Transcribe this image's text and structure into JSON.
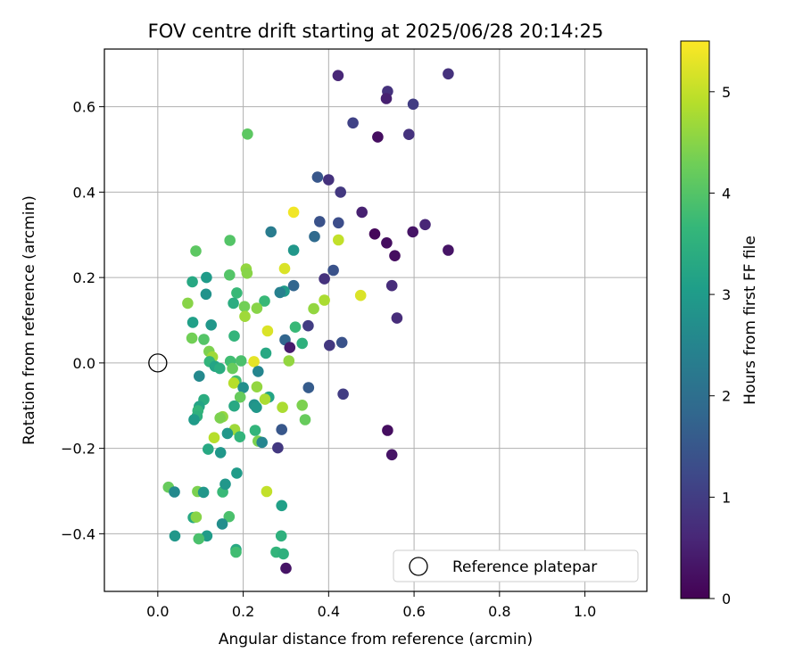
{
  "chart_data": {
    "type": "scatter",
    "title": "FOV centre drift starting at 2025/06/28 20:14:25",
    "xlabel": "Angular distance from reference (arcmin)",
    "ylabel": "Rotation from reference (arcmin)",
    "xlim": [
      -0.125,
      1.145
    ],
    "ylim": [
      -0.535,
      0.735
    ],
    "xticks": [
      0.0,
      0.2,
      0.4,
      0.6,
      0.8,
      1.0
    ],
    "yticks": [
      -0.4,
      -0.2,
      0.0,
      0.2,
      0.4,
      0.6
    ],
    "xtick_labels": [
      "0.0",
      "0.2",
      "0.4",
      "0.6",
      "0.8",
      "1.0"
    ],
    "ytick_labels": [
      "−0.4",
      "−0.2",
      "0.0",
      "0.2",
      "0.4",
      "0.6"
    ],
    "grid": true,
    "colormap": "viridis",
    "color_scale": {
      "label": "Hours from first FF file",
      "range": [
        0,
        5.5
      ],
      "ticks": [
        0,
        1,
        2,
        3,
        4,
        5
      ],
      "tick_labels": [
        "0",
        "1",
        "2",
        "3",
        "4",
        "5"
      ],
      "stops": [
        "#440154",
        "#482878",
        "#3e4989",
        "#31688e",
        "#26828e",
        "#1f9e89",
        "#35b779",
        "#6ece58",
        "#b5de2b",
        "#fde725"
      ]
    },
    "reference": {
      "x": 0.0,
      "y": 0.0,
      "label": "Reference platepar",
      "marker": "hollow-circle"
    },
    "legend_position": "lower-right",
    "points": [
      {
        "x": 0.422,
        "y": 0.673,
        "h": 0.6
      },
      {
        "x": 0.538,
        "y": 0.636,
        "h": 0.8
      },
      {
        "x": 0.68,
        "y": 0.677,
        "h": 0.8
      },
      {
        "x": 0.535,
        "y": 0.619,
        "h": 0.5
      },
      {
        "x": 0.598,
        "y": 0.606,
        "h": 1.0
      },
      {
        "x": 0.457,
        "y": 0.562,
        "h": 1.1
      },
      {
        "x": 0.515,
        "y": 0.529,
        "h": 0.2
      },
      {
        "x": 0.588,
        "y": 0.535,
        "h": 0.8
      },
      {
        "x": 0.21,
        "y": 0.536,
        "h": 4.1
      },
      {
        "x": 0.374,
        "y": 0.435,
        "h": 1.5
      },
      {
        "x": 0.4,
        "y": 0.429,
        "h": 0.8
      },
      {
        "x": 0.428,
        "y": 0.4,
        "h": 0.9
      },
      {
        "x": 0.478,
        "y": 0.353,
        "h": 0.5
      },
      {
        "x": 0.318,
        "y": 0.353,
        "h": 5.4
      },
      {
        "x": 0.379,
        "y": 0.331,
        "h": 1.4
      },
      {
        "x": 0.423,
        "y": 0.328,
        "h": 1.3
      },
      {
        "x": 0.626,
        "y": 0.324,
        "h": 0.6
      },
      {
        "x": 0.265,
        "y": 0.307,
        "h": 2.3
      },
      {
        "x": 0.597,
        "y": 0.307,
        "h": 0.3
      },
      {
        "x": 0.508,
        "y": 0.302,
        "h": 0.1
      },
      {
        "x": 0.367,
        "y": 0.296,
        "h": 1.9
      },
      {
        "x": 0.423,
        "y": 0.288,
        "h": 5.0
      },
      {
        "x": 0.169,
        "y": 0.287,
        "h": 4.0
      },
      {
        "x": 0.536,
        "y": 0.281,
        "h": 0.2
      },
      {
        "x": 0.318,
        "y": 0.264,
        "h": 2.9
      },
      {
        "x": 0.68,
        "y": 0.264,
        "h": 0.3
      },
      {
        "x": 0.089,
        "y": 0.262,
        "h": 4.1
      },
      {
        "x": 0.555,
        "y": 0.251,
        "h": 0.2
      },
      {
        "x": 0.207,
        "y": 0.22,
        "h": 4.6
      },
      {
        "x": 0.297,
        "y": 0.221,
        "h": 5.2
      },
      {
        "x": 0.411,
        "y": 0.217,
        "h": 1.4
      },
      {
        "x": 0.209,
        "y": 0.21,
        "h": 4.5
      },
      {
        "x": 0.168,
        "y": 0.206,
        "h": 4.0
      },
      {
        "x": 0.114,
        "y": 0.2,
        "h": 3.0
      },
      {
        "x": 0.39,
        "y": 0.197,
        "h": 0.8
      },
      {
        "x": 0.081,
        "y": 0.19,
        "h": 3.3
      },
      {
        "x": 0.318,
        "y": 0.181,
        "h": 1.8
      },
      {
        "x": 0.548,
        "y": 0.181,
        "h": 0.7
      },
      {
        "x": 0.296,
        "y": 0.168,
        "h": 3.0
      },
      {
        "x": 0.286,
        "y": 0.165,
        "h": 2.4
      },
      {
        "x": 0.185,
        "y": 0.164,
        "h": 3.7
      },
      {
        "x": 0.113,
        "y": 0.161,
        "h": 2.8
      },
      {
        "x": 0.475,
        "y": 0.158,
        "h": 5.2
      },
      {
        "x": 0.25,
        "y": 0.145,
        "h": 3.7
      },
      {
        "x": 0.39,
        "y": 0.147,
        "h": 4.8
      },
      {
        "x": 0.07,
        "y": 0.14,
        "h": 4.5
      },
      {
        "x": 0.177,
        "y": 0.14,
        "h": 3.4
      },
      {
        "x": 0.203,
        "y": 0.132,
        "h": 4.3
      },
      {
        "x": 0.232,
        "y": 0.128,
        "h": 4.5
      },
      {
        "x": 0.365,
        "y": 0.127,
        "h": 4.6
      },
      {
        "x": 0.204,
        "y": 0.109,
        "h": 4.7
      },
      {
        "x": 0.56,
        "y": 0.105,
        "h": 0.7
      },
      {
        "x": 0.082,
        "y": 0.095,
        "h": 3.1
      },
      {
        "x": 0.125,
        "y": 0.089,
        "h": 2.9
      },
      {
        "x": 0.352,
        "y": 0.087,
        "h": 1.0
      },
      {
        "x": 0.322,
        "y": 0.084,
        "h": 3.7
      },
      {
        "x": 0.257,
        "y": 0.075,
        "h": 5.2
      },
      {
        "x": 0.179,
        "y": 0.063,
        "h": 3.6
      },
      {
        "x": 0.08,
        "y": 0.058,
        "h": 4.3
      },
      {
        "x": 0.108,
        "y": 0.055,
        "h": 4.0
      },
      {
        "x": 0.298,
        "y": 0.054,
        "h": 1.8
      },
      {
        "x": 0.338,
        "y": 0.046,
        "h": 3.5
      },
      {
        "x": 0.431,
        "y": 0.048,
        "h": 1.4
      },
      {
        "x": 0.402,
        "y": 0.041,
        "h": 0.9
      },
      {
        "x": 0.309,
        "y": 0.036,
        "h": 0.4
      },
      {
        "x": 0.12,
        "y": 0.027,
        "h": 4.4
      },
      {
        "x": 0.253,
        "y": 0.023,
        "h": 3.3
      },
      {
        "x": 0.128,
        "y": 0.014,
        "h": 4.7
      },
      {
        "x": 0.121,
        "y": 0.003,
        "h": 3.6
      },
      {
        "x": 0.134,
        "y": -0.008,
        "h": 3.2
      },
      {
        "x": 0.17,
        "y": 0.004,
        "h": 3.8
      },
      {
        "x": 0.195,
        "y": 0.005,
        "h": 3.9
      },
      {
        "x": 0.225,
        "y": 0.003,
        "h": 5.3
      },
      {
        "x": 0.307,
        "y": 0.005,
        "h": 4.6
      },
      {
        "x": 0.145,
        "y": -0.013,
        "h": 3.4
      },
      {
        "x": 0.175,
        "y": -0.013,
        "h": 4.2
      },
      {
        "x": 0.235,
        "y": -0.02,
        "h": 2.5
      },
      {
        "x": 0.097,
        "y": -0.031,
        "h": 2.6
      },
      {
        "x": 0.183,
        "y": -0.042,
        "h": 3.8
      },
      {
        "x": 0.178,
        "y": -0.047,
        "h": 4.9
      },
      {
        "x": 0.2,
        "y": -0.058,
        "h": 2.7
      },
      {
        "x": 0.232,
        "y": -0.056,
        "h": 4.6
      },
      {
        "x": 0.353,
        "y": -0.058,
        "h": 1.6
      },
      {
        "x": 0.434,
        "y": -0.073,
        "h": 1.0
      },
      {
        "x": 0.108,
        "y": -0.086,
        "h": 3.4
      },
      {
        "x": 0.193,
        "y": -0.08,
        "h": 4.2
      },
      {
        "x": 0.26,
        "y": -0.08,
        "h": 3.2
      },
      {
        "x": 0.251,
        "y": -0.085,
        "h": 4.8
      },
      {
        "x": 0.097,
        "y": -0.102,
        "h": 3.2
      },
      {
        "x": 0.179,
        "y": -0.101,
        "h": 3.3
      },
      {
        "x": 0.226,
        "y": -0.098,
        "h": 2.8
      },
      {
        "x": 0.231,
        "y": -0.104,
        "h": 2.9
      },
      {
        "x": 0.292,
        "y": -0.104,
        "h": 4.8
      },
      {
        "x": 0.338,
        "y": -0.099,
        "h": 4.4
      },
      {
        "x": 0.094,
        "y": -0.112,
        "h": 3.6
      },
      {
        "x": 0.092,
        "y": -0.125,
        "h": 3.5
      },
      {
        "x": 0.152,
        "y": -0.126,
        "h": 4.6
      },
      {
        "x": 0.085,
        "y": -0.133,
        "h": 3.0
      },
      {
        "x": 0.146,
        "y": -0.129,
        "h": 4.4
      },
      {
        "x": 0.345,
        "y": -0.133,
        "h": 4.2
      },
      {
        "x": 0.18,
        "y": -0.156,
        "h": 4.7
      },
      {
        "x": 0.228,
        "y": -0.158,
        "h": 3.6
      },
      {
        "x": 0.163,
        "y": -0.165,
        "h": 2.9
      },
      {
        "x": 0.29,
        "y": -0.156,
        "h": 1.5
      },
      {
        "x": 0.538,
        "y": -0.158,
        "h": 0.2
      },
      {
        "x": 0.132,
        "y": -0.175,
        "h": 4.9
      },
      {
        "x": 0.192,
        "y": -0.173,
        "h": 3.6
      },
      {
        "x": 0.235,
        "y": -0.183,
        "h": 4.4
      },
      {
        "x": 0.244,
        "y": -0.186,
        "h": 2.5
      },
      {
        "x": 0.281,
        "y": -0.199,
        "h": 0.9
      },
      {
        "x": 0.118,
        "y": -0.202,
        "h": 3.3
      },
      {
        "x": 0.147,
        "y": -0.21,
        "h": 2.9
      },
      {
        "x": 0.548,
        "y": -0.215,
        "h": 0.3
      },
      {
        "x": 0.185,
        "y": -0.258,
        "h": 3.0
      },
      {
        "x": 0.025,
        "y": -0.291,
        "h": 4.2
      },
      {
        "x": 0.039,
        "y": -0.302,
        "h": 2.6
      },
      {
        "x": 0.093,
        "y": -0.301,
        "h": 4.4
      },
      {
        "x": 0.107,
        "y": -0.303,
        "h": 2.9
      },
      {
        "x": 0.152,
        "y": -0.302,
        "h": 3.7
      },
      {
        "x": 0.255,
        "y": -0.301,
        "h": 5.0
      },
      {
        "x": 0.158,
        "y": -0.284,
        "h": 2.9
      },
      {
        "x": 0.29,
        "y": -0.334,
        "h": 3.1
      },
      {
        "x": 0.083,
        "y": -0.362,
        "h": 3.3
      },
      {
        "x": 0.09,
        "y": -0.361,
        "h": 4.5
      },
      {
        "x": 0.167,
        "y": -0.36,
        "h": 3.9
      },
      {
        "x": 0.151,
        "y": -0.377,
        "h": 2.7
      },
      {
        "x": 0.04,
        "y": -0.405,
        "h": 2.9
      },
      {
        "x": 0.115,
        "y": -0.405,
        "h": 3.0
      },
      {
        "x": 0.289,
        "y": -0.405,
        "h": 3.5
      },
      {
        "x": 0.096,
        "y": -0.412,
        "h": 3.9
      },
      {
        "x": 0.183,
        "y": -0.437,
        "h": 3.3
      },
      {
        "x": 0.183,
        "y": -0.443,
        "h": 3.8
      },
      {
        "x": 0.277,
        "y": -0.443,
        "h": 3.6
      },
      {
        "x": 0.294,
        "y": -0.447,
        "h": 3.5
      },
      {
        "x": 0.3,
        "y": -0.481,
        "h": 0.3
      }
    ]
  }
}
